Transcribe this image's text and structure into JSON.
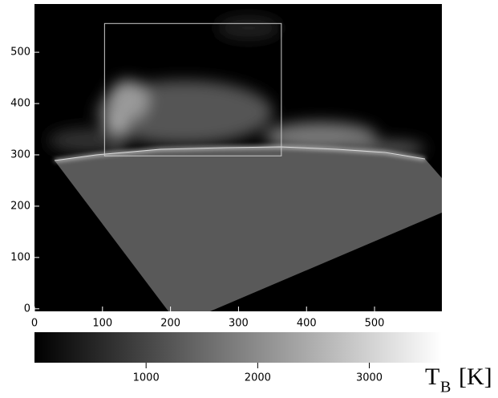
{
  "chart_data": {
    "type": "image",
    "xlim": [
      0,
      599
    ],
    "xticks": [
      0,
      100,
      200,
      300,
      400,
      500
    ],
    "ylim": [
      -5,
      594
    ],
    "yticks": [
      0,
      100,
      200,
      300,
      400,
      500
    ],
    "box_x": [
      103,
      363
    ],
    "box_y": [
      298,
      556
    ],
    "clim": [
      0,
      3650
    ],
    "colorbar_ticks": [
      1000,
      2000,
      3000
    ],
    "colorbar_label": {
      "symbol": "T",
      "subscript": "B",
      "unit": "[K]"
    }
  }
}
